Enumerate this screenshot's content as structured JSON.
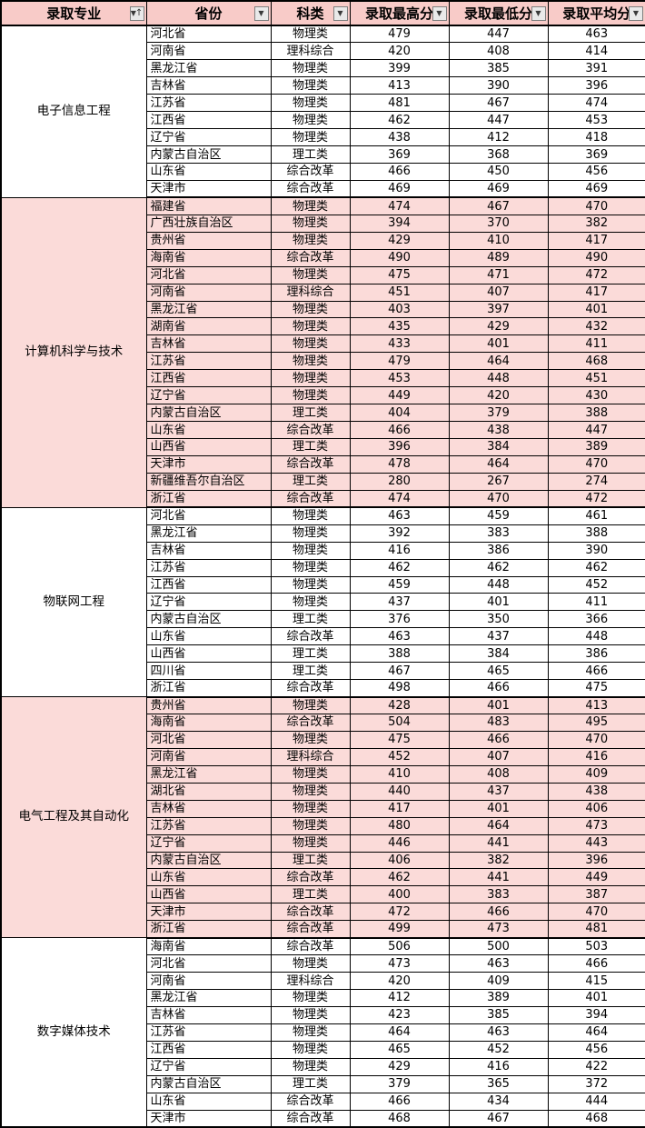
{
  "table": {
    "columns": [
      {
        "label": "录取专业",
        "filter": "filter-sorted-ascending"
      },
      {
        "label": "省份",
        "filter": "dropdown"
      },
      {
        "label": "科类",
        "filter": "dropdown"
      },
      {
        "label": "录取最高分",
        "filter": "dropdown"
      },
      {
        "label": "录取最低分",
        "filter": "dropdown"
      },
      {
        "label": "录取平均分",
        "filter": "dropdown"
      }
    ],
    "icons": {
      "dropdown_arrow": "▼",
      "sort_ascending_arrow": "↑"
    },
    "groups": [
      {
        "major": "电子信息工程",
        "shaded": false,
        "rows": [
          [
            "河北省",
            "物理类",
            "479",
            "447",
            "463"
          ],
          [
            "河南省",
            "理科综合",
            "420",
            "408",
            "414"
          ],
          [
            "黑龙江省",
            "物理类",
            "399",
            "385",
            "391"
          ],
          [
            "吉林省",
            "物理类",
            "413",
            "390",
            "396"
          ],
          [
            "江苏省",
            "物理类",
            "481",
            "467",
            "474"
          ],
          [
            "江西省",
            "物理类",
            "462",
            "447",
            "453"
          ],
          [
            "辽宁省",
            "物理类",
            "438",
            "412",
            "418"
          ],
          [
            "内蒙古自治区",
            "理工类",
            "369",
            "368",
            "369"
          ],
          [
            "山东省",
            "综合改革",
            "466",
            "450",
            "456"
          ],
          [
            "天津市",
            "综合改革",
            "469",
            "469",
            "469"
          ]
        ]
      },
      {
        "major": "计算机科学与技术",
        "shaded": true,
        "rows": [
          [
            "福建省",
            "物理类",
            "474",
            "467",
            "470"
          ],
          [
            "广西壮族自治区",
            "物理类",
            "394",
            "370",
            "382"
          ],
          [
            "贵州省",
            "物理类",
            "429",
            "410",
            "417"
          ],
          [
            "海南省",
            "综合改革",
            "490",
            "489",
            "490"
          ],
          [
            "河北省",
            "物理类",
            "475",
            "471",
            "472"
          ],
          [
            "河南省",
            "理科综合",
            "451",
            "407",
            "417"
          ],
          [
            "黑龙江省",
            "物理类",
            "403",
            "397",
            "401"
          ],
          [
            "湖南省",
            "物理类",
            "435",
            "429",
            "432"
          ],
          [
            "吉林省",
            "物理类",
            "433",
            "401",
            "411"
          ],
          [
            "江苏省",
            "物理类",
            "479",
            "464",
            "468"
          ],
          [
            "江西省",
            "物理类",
            "453",
            "448",
            "451"
          ],
          [
            "辽宁省",
            "物理类",
            "449",
            "420",
            "430"
          ],
          [
            "内蒙古自治区",
            "理工类",
            "404",
            "379",
            "388"
          ],
          [
            "山东省",
            "综合改革",
            "466",
            "438",
            "447"
          ],
          [
            "山西省",
            "理工类",
            "396",
            "384",
            "389"
          ],
          [
            "天津市",
            "综合改革",
            "478",
            "464",
            "470"
          ],
          [
            "新疆维吾尔自治区",
            "理工类",
            "280",
            "267",
            "274"
          ],
          [
            "浙江省",
            "综合改革",
            "474",
            "470",
            "472"
          ]
        ]
      },
      {
        "major": "物联网工程",
        "shaded": false,
        "rows": [
          [
            "河北省",
            "物理类",
            "463",
            "459",
            "461"
          ],
          [
            "黑龙江省",
            "物理类",
            "392",
            "383",
            "388"
          ],
          [
            "吉林省",
            "物理类",
            "416",
            "386",
            "390"
          ],
          [
            "江苏省",
            "物理类",
            "462",
            "462",
            "462"
          ],
          [
            "江西省",
            "物理类",
            "459",
            "448",
            "452"
          ],
          [
            "辽宁省",
            "物理类",
            "437",
            "401",
            "411"
          ],
          [
            "内蒙古自治区",
            "理工类",
            "376",
            "350",
            "366"
          ],
          [
            "山东省",
            "综合改革",
            "463",
            "437",
            "448"
          ],
          [
            "山西省",
            "理工类",
            "388",
            "384",
            "386"
          ],
          [
            "四川省",
            "理工类",
            "467",
            "465",
            "466"
          ],
          [
            "浙江省",
            "综合改革",
            "498",
            "466",
            "475"
          ]
        ]
      },
      {
        "major": "电气工程及其自动化",
        "shaded": true,
        "rows": [
          [
            "贵州省",
            "物理类",
            "428",
            "401",
            "413"
          ],
          [
            "海南省",
            "综合改革",
            "504",
            "483",
            "495"
          ],
          [
            "河北省",
            "物理类",
            "475",
            "466",
            "470"
          ],
          [
            "河南省",
            "理科综合",
            "452",
            "407",
            "416"
          ],
          [
            "黑龙江省",
            "物理类",
            "410",
            "408",
            "409"
          ],
          [
            "湖北省",
            "物理类",
            "440",
            "437",
            "438"
          ],
          [
            "吉林省",
            "物理类",
            "417",
            "401",
            "406"
          ],
          [
            "江苏省",
            "物理类",
            "480",
            "464",
            "473"
          ],
          [
            "辽宁省",
            "物理类",
            "446",
            "441",
            "443"
          ],
          [
            "内蒙古自治区",
            "理工类",
            "406",
            "382",
            "396"
          ],
          [
            "山东省",
            "综合改革",
            "462",
            "441",
            "449"
          ],
          [
            "山西省",
            "理工类",
            "400",
            "383",
            "387"
          ],
          [
            "天津市",
            "综合改革",
            "472",
            "466",
            "470"
          ],
          [
            "浙江省",
            "综合改革",
            "499",
            "473",
            "481"
          ]
        ]
      },
      {
        "major": "数字媒体技术",
        "shaded": false,
        "rows": [
          [
            "海南省",
            "综合改革",
            "506",
            "500",
            "503"
          ],
          [
            "河北省",
            "物理类",
            "473",
            "463",
            "466"
          ],
          [
            "河南省",
            "理科综合",
            "420",
            "409",
            "415"
          ],
          [
            "黑龙江省",
            "物理类",
            "412",
            "389",
            "401"
          ],
          [
            "吉林省",
            "物理类",
            "423",
            "385",
            "394"
          ],
          [
            "江苏省",
            "物理类",
            "464",
            "463",
            "464"
          ],
          [
            "江西省",
            "物理类",
            "465",
            "452",
            "456"
          ],
          [
            "辽宁省",
            "物理类",
            "429",
            "416",
            "422"
          ],
          [
            "内蒙古自治区",
            "理工类",
            "379",
            "365",
            "372"
          ],
          [
            "山东省",
            "综合改革",
            "466",
            "434",
            "444"
          ],
          [
            "天津市",
            "综合改革",
            "468",
            "467",
            "468"
          ]
        ]
      }
    ]
  },
  "colors": {
    "header_fill": "#F8CBC8",
    "shaded_row_fill": "#FBDBD9",
    "unshaded_row_fill": "#FFFFFF",
    "grid_line": "#000000",
    "filter_button_face": "#E9E9E9",
    "filter_button_border": "#7F7F7F"
  }
}
